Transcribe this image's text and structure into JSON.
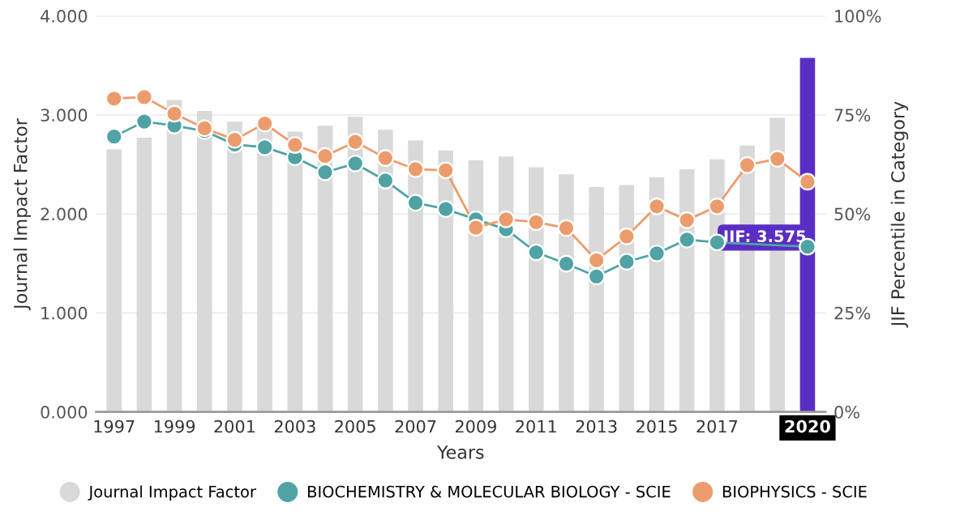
{
  "chart_data": {
    "type": "bar",
    "xlabel": "Years",
    "ylabel": "Journal Impact Factor",
    "y2label": "JIF Percentile in Category",
    "categories": [
      "1997",
      null,
      "1999",
      null,
      "2001",
      null,
      "2003",
      null,
      "2005",
      null,
      "2007",
      null,
      "2009",
      null,
      "2011",
      null,
      "2013",
      null,
      "2015",
      null,
      "2017",
      null,
      null,
      "2020"
    ],
    "series": [
      {
        "name": "Journal Impact Factor",
        "color": "#d9d9d9",
        "colors": [
          "#d9d9d9",
          "#d9d9d9",
          "#d9d9d9",
          "#d9d9d9",
          "#d9d9d9",
          "#d9d9d9",
          "#d9d9d9",
          "#d9d9d9",
          "#d9d9d9",
          "#d9d9d9",
          "#d9d9d9",
          "#d9d9d9",
          "#d9d9d9",
          "#d9d9d9",
          "#d9d9d9",
          "#d9d9d9",
          "#d9d9d9",
          "#d9d9d9",
          "#d9d9d9",
          "#d9d9d9",
          "#d9d9d9",
          "#d9d9d9",
          "#d9d9d9",
          "#5a2ec4"
        ],
        "values": [
          2.65,
          2.77,
          3.15,
          3.04,
          2.93,
          2.86,
          2.83,
          2.89,
          2.98,
          2.85,
          2.74,
          2.64,
          2.54,
          2.58,
          2.47,
          2.4,
          2.27,
          2.29,
          2.37,
          2.45,
          2.55,
          2.69,
          2.97,
          3.575
        ]
      },
      {
        "name": "BIOCHEMISTRY & MOLECULAR BIOLOGY - SCIE",
        "type": "line",
        "axis": "y2",
        "color": "#4fa3a5",
        "values": [
          69.5,
          73.3,
          72.3,
          70.9,
          67.5,
          66.8,
          64.3,
          60.5,
          62.7,
          58.4,
          52.8,
          51.2,
          48.6,
          46.1,
          40.3,
          37.4,
          34.2,
          37.9,
          40.0,
          43.5,
          42.8,
          null,
          null,
          41.7
        ]
      },
      {
        "name": "BIOPHYSICS - SCIE",
        "type": "line",
        "axis": "y2",
        "color": "#ec9c6c",
        "values": [
          79.1,
          79.5,
          75.3,
          71.6,
          68.7,
          72.8,
          67.4,
          64.6,
          68.2,
          64.1,
          61.3,
          61.0,
          46.5,
          48.6,
          47.9,
          46.4,
          38.3,
          44.3,
          51.9,
          48.4,
          51.9,
          62.3,
          63.9,
          58.1
        ]
      }
    ],
    "ylim": [
      0,
      4
    ],
    "yticks": [
      {
        "value": 0,
        "label": "0.000"
      },
      {
        "value": 1,
        "label": "1.000"
      },
      {
        "value": 2,
        "label": "2.000"
      },
      {
        "value": 3,
        "label": "3.000"
      },
      {
        "value": 4,
        "label": "4.000"
      }
    ],
    "y2lim": [
      0,
      100
    ],
    "y2ticks": [
      {
        "value": 0,
        "label": "0%"
      },
      {
        "value": 25,
        "label": "25%"
      },
      {
        "value": 50,
        "label": "50%"
      },
      {
        "value": 75,
        "label": "75%"
      },
      {
        "value": 100,
        "label": "100%"
      }
    ],
    "annotations": [
      "JIF: 3.575"
    ],
    "grid": "y",
    "legend": "bottom",
    "marker": "circle",
    "line_style": "solid"
  }
}
